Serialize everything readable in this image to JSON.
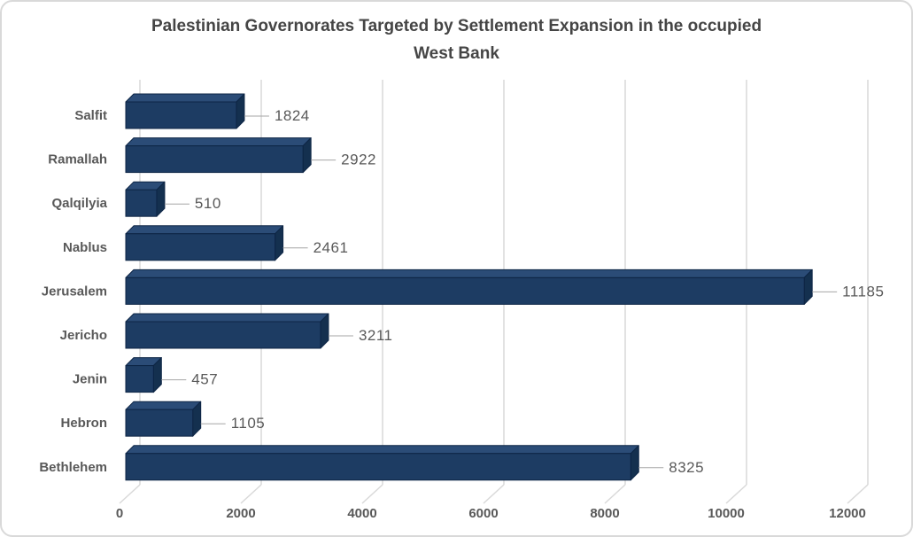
{
  "header": {
    "title_lines": [
      "Palestinian Governorates Targeted by Settlement Expansion in the occupied",
      "West Bank"
    ]
  },
  "chart_data": {
    "type": "bar",
    "orientation": "horizontal",
    "style": "3d",
    "title": "Palestinian Governorates Targeted by Settlement Expansion in the occupied West Bank",
    "categories": [
      "Salfit",
      "Ramallah",
      "Qalqilyia",
      "Nablus",
      "Jerusalem",
      "Jericho",
      "Jenin",
      "Hebron",
      "Bethlehem"
    ],
    "values": [
      1824,
      2922,
      510,
      2461,
      11185,
      3211,
      457,
      1105,
      8325
    ],
    "data_labels": [
      "1824",
      "2922",
      "510",
      "2461",
      "11185",
      "3211",
      "457",
      "1105",
      "8325"
    ],
    "xlabel": "",
    "ylabel": "",
    "x_axis": {
      "range": [
        0,
        12000
      ],
      "ticks": [
        0,
        2000,
        4000,
        6000,
        8000,
        10000,
        12000
      ],
      "tick_labels": [
        "0",
        "2000",
        "4000",
        "6000",
        "8000",
        "10000",
        "12000"
      ]
    },
    "grid": true,
    "legend": false,
    "colors": {
      "bar_front": "#1d3c63",
      "bar_top": "#2b4c77",
      "bar_side": "#14304f",
      "bar_edge": "#0d2545",
      "gridline": "#d9d9d9",
      "leader_line": "#a6a6a6",
      "label_text": "#595959",
      "title_text": "#454545",
      "frame_border": "#d9d9d9"
    }
  }
}
